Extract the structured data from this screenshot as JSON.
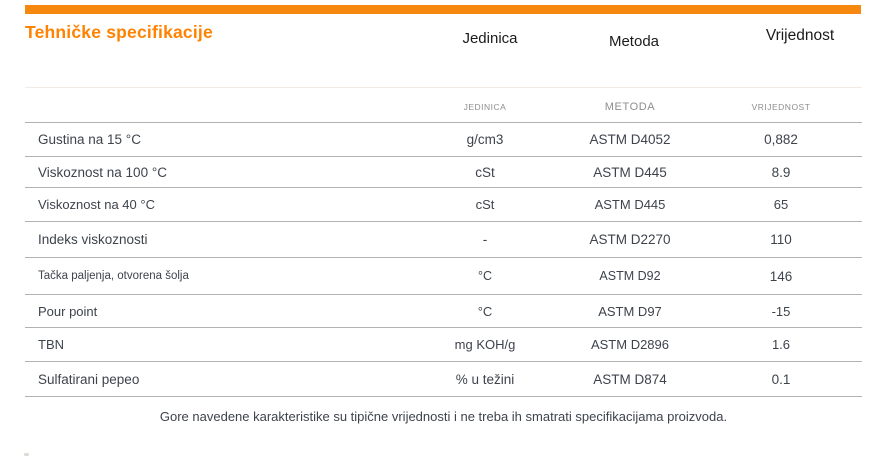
{
  "page": {
    "title": "Tehničke specifikacije",
    "footer_note": "Gore navedene karakteristike su tipične vrijednosti i ne treba ih smatrati specifikacijama proizvoda."
  },
  "colors": {
    "accent_bar": "#F6870F",
    "title": "#FF8200",
    "body_text": "#3E434C",
    "muted_text": "#8E8E8E",
    "divider": "#B4B1AF"
  },
  "table": {
    "headers": {
      "unit": "Jedinica",
      "method": "Metoda",
      "value": "Vrijednost"
    },
    "subheaders": {
      "unit": "JEDINICA",
      "method": "METODA",
      "value": "VRIJEDNOST"
    },
    "rows": [
      {
        "property": "Gustina na 15 °C",
        "unit": "g/cm3",
        "method": "ASTM D4052",
        "value": "0,882"
      },
      {
        "property": "Viskoznost na 100 °C",
        "unit": "cSt",
        "method": "ASTM D445",
        "value": "8.9"
      },
      {
        "property": "Viskoznost na 40 °C",
        "unit": "cSt",
        "method": "ASTM D445",
        "value": "65"
      },
      {
        "property": "Indeks viskoznosti",
        "unit": "-",
        "method": "ASTM D2270",
        "value": "110"
      },
      {
        "property": "Tačka paljenja, otvorena šolja",
        "unit": "°C",
        "method": "ASTM D92",
        "value": "146"
      },
      {
        "property": "Pour point",
        "unit": "°C",
        "method": "ASTM D97",
        "value": "-15"
      },
      {
        "property": "TBN",
        "unit": "mg KOH/g",
        "method": "ASTM D2896",
        "value": "1.6"
      },
      {
        "property": "Sulfatirani pepeo",
        "unit": "% u težini",
        "method": "ASTM D874",
        "value": "0.1"
      }
    ]
  }
}
